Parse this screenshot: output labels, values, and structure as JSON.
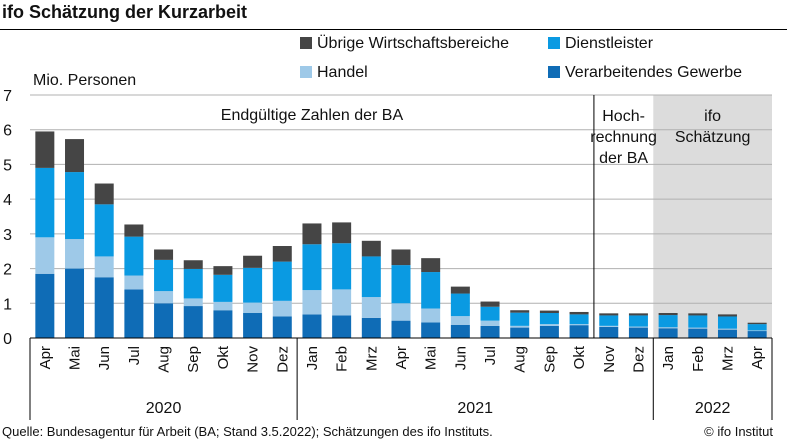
{
  "title": "ifo Schätzung der Kurzarbeit",
  "source": "Quelle: Bundesagentur für Arbeit (BA; Stand 3.5.2022); Schätzungen des ifo Instituts.",
  "credit": "© ifo Institut",
  "chart_data": {
    "type": "bar",
    "stacked": true,
    "ylabel": "Mio. Personen",
    "ylim": [
      0,
      7
    ],
    "yticks": [
      0,
      1,
      2,
      3,
      4,
      5,
      6,
      7
    ],
    "grid": true,
    "legend_position": "top-right",
    "categories": [
      "Apr",
      "Mai",
      "Jun",
      "Jul",
      "Aug",
      "Sep",
      "Okt",
      "Nov",
      "Dez",
      "Jan",
      "Feb",
      "Mrz",
      "Apr",
      "Mai",
      "Jun",
      "Jul",
      "Aug",
      "Sep",
      "Okt",
      "Nov",
      "Dez",
      "Jan",
      "Feb",
      "Mrz",
      "Apr"
    ],
    "years": [
      {
        "label": "2020",
        "from": 0,
        "to": 8
      },
      {
        "label": "2021",
        "from": 9,
        "to": 20
      },
      {
        "label": "2022",
        "from": 21,
        "to": 24
      }
    ],
    "series": [
      {
        "name": "Verarbeitendes Gewerbe",
        "color": "#0f6cb6",
        "values": [
          1.85,
          2.0,
          1.75,
          1.4,
          1.0,
          0.92,
          0.8,
          0.72,
          0.62,
          0.68,
          0.65,
          0.58,
          0.5,
          0.45,
          0.38,
          0.35,
          0.3,
          0.35,
          0.37,
          0.32,
          0.3,
          0.28,
          0.27,
          0.24,
          0.2
        ]
      },
      {
        "name": "Handel",
        "color": "#9ec9e8",
        "values": [
          1.05,
          0.85,
          0.6,
          0.4,
          0.35,
          0.22,
          0.24,
          0.3,
          0.45,
          0.7,
          0.75,
          0.6,
          0.5,
          0.4,
          0.25,
          0.15,
          0.05,
          0.05,
          0.03,
          0.03,
          0.03,
          0.03,
          0.03,
          0.03,
          0.02
        ]
      },
      {
        "name": "Dienstleister",
        "color": "#0a9ae2",
        "values": [
          2.0,
          1.93,
          1.5,
          1.12,
          0.9,
          0.85,
          0.78,
          1.0,
          1.13,
          1.32,
          1.33,
          1.17,
          1.1,
          1.05,
          0.65,
          0.4,
          0.38,
          0.32,
          0.28,
          0.3,
          0.32,
          0.35,
          0.35,
          0.35,
          0.18
        ]
      },
      {
        "name": "Übrige Wirtschaftsbereiche",
        "color": "#454545",
        "values": [
          1.05,
          0.95,
          0.6,
          0.35,
          0.3,
          0.25,
          0.25,
          0.35,
          0.45,
          0.6,
          0.6,
          0.45,
          0.45,
          0.4,
          0.2,
          0.15,
          0.07,
          0.07,
          0.07,
          0.06,
          0.06,
          0.06,
          0.06,
          0.06,
          0.04
        ]
      }
    ],
    "legend": [
      {
        "series": 3,
        "label": "Übrige Wirtschaftsbereiche"
      },
      {
        "series": 2,
        "label": "Dienstleister"
      },
      {
        "series": 1,
        "label": "Handel"
      },
      {
        "series": 0,
        "label": "Verarbeitendes Gewerbe"
      }
    ],
    "annotations": [
      {
        "id": "final",
        "lines": [
          "Endgültige Zahlen der BA"
        ],
        "from": 0,
        "to": 18
      },
      {
        "id": "projection",
        "lines": [
          "Hoch-",
          "rechnung",
          "der BA"
        ],
        "from": 19,
        "to": 20
      },
      {
        "id": "estimate",
        "lines": [
          "ifo",
          "Schätzung"
        ],
        "from": 21,
        "to": 24
      }
    ],
    "shaded_range": {
      "from": 21,
      "to": 24,
      "label": "ifo Schätzung"
    }
  }
}
